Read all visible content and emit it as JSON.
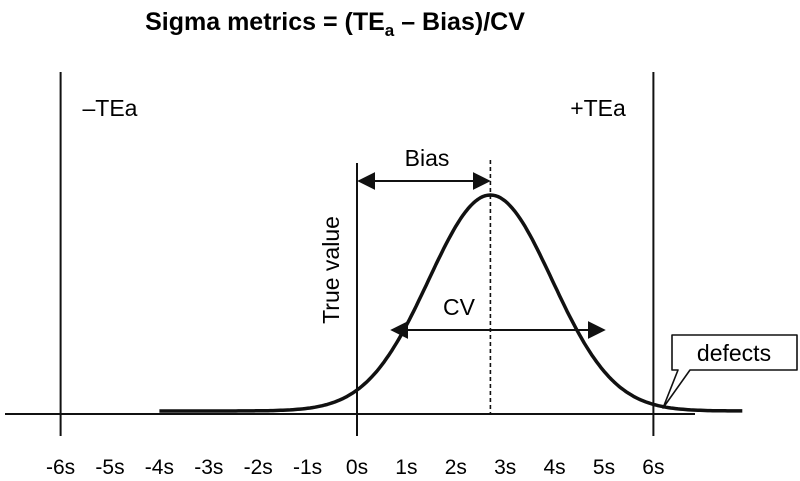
{
  "title": {
    "prefix": "Sigma metrics = (TE",
    "subscript": "a",
    "suffix": " – Bias)/CV"
  },
  "labels": {
    "neg_tea": "–TEa",
    "pos_tea": "+TEa",
    "bias": "Bias",
    "true_value": "True value",
    "cv": "CV",
    "defects": "defects"
  },
  "axis": {
    "ticks": [
      "-6s",
      "-5s",
      "-4s",
      "-3s",
      "-2s",
      "-1s",
      "0s",
      "1s",
      "2s",
      "3s",
      "4s",
      "5s",
      "6s"
    ]
  },
  "distribution": {
    "mean_s": 2.7,
    "sd_s": 1.25,
    "x_start_s": -4,
    "x_end_s": 7.8,
    "tea_limits_s": [
      -6,
      6
    ],
    "true_value_s": 0
  },
  "colors": {
    "ink": "#111111",
    "background": "#ffffff"
  }
}
